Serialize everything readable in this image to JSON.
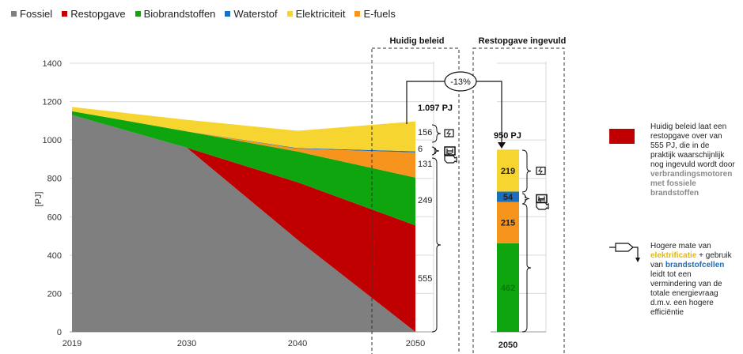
{
  "legend": [
    {
      "name": "Fossiel",
      "color": "#7f7f7f"
    },
    {
      "name": "Restopgave",
      "color": "#c00000"
    },
    {
      "name": "Biobrandstoffen",
      "color": "#0ea50e"
    },
    {
      "name": "Waterstof",
      "color": "#1a6fbf"
    },
    {
      "name": "Elektriciteit",
      "color": "#f7d531"
    },
    {
      "name": "E-fuels",
      "color": "#f7941d"
    }
  ],
  "headers": {
    "left": "Huidig beleid",
    "right": "Restopgave ingevuld"
  },
  "reduction_label": "-13%",
  "totals": {
    "current": "1.097 PJ",
    "target": "950 PJ"
  },
  "chart_data": [
    {
      "type": "area",
      "x": [
        2019,
        2030,
        2040,
        2050
      ],
      "ylabel": "[PJ]",
      "ylim": [
        0,
        1400
      ],
      "yticks": [
        0,
        200,
        400,
        600,
        800,
        1000,
        1200,
        1400
      ],
      "xtick_labels": [
        "2019",
        "2030",
        "2040",
        "2050"
      ],
      "grid": true,
      "series": [
        {
          "name": "Fossiel",
          "color": "#7f7f7f",
          "values": [
            1130,
            960,
            480,
            0
          ]
        },
        {
          "name": "Restopgave",
          "color": "#c00000",
          "values": [
            0,
            0,
            300,
            555
          ]
        },
        {
          "name": "Biobrandstoffen",
          "color": "#0ea50e",
          "values": [
            20,
            85,
            160,
            249
          ]
        },
        {
          "name": "E-fuels",
          "color": "#f7941d",
          "values": [
            0,
            0,
            15,
            131
          ]
        },
        {
          "name": "Waterstof",
          "color": "#1a6fbf",
          "values": [
            0,
            0,
            3,
            6
          ]
        },
        {
          "name": "Elektriciteit",
          "color": "#f7d531",
          "values": [
            22,
            60,
            90,
            156
          ]
        }
      ],
      "data_labels": [
        "156",
        "6",
        "131",
        "249",
        "555"
      ]
    },
    {
      "type": "bar",
      "categories": [
        "2050"
      ],
      "series": [
        {
          "name": "Biobrandstoffen",
          "color": "#0ea50e",
          "values": [
            462
          ]
        },
        {
          "name": "E-fuels",
          "color": "#f7941d",
          "values": [
            215
          ]
        },
        {
          "name": "Waterstof",
          "color": "#1a6fbf",
          "values": [
            54
          ]
        },
        {
          "name": "Elektriciteit",
          "color": "#f7d531",
          "values": [
            219
          ]
        }
      ],
      "data_labels": [
        "462",
        "215",
        "54",
        "219"
      ]
    }
  ],
  "notes": {
    "restopgave_lines": [
      "Huidig beleid laat een",
      "restopgave over van",
      "555 PJ, die in de",
      "praktijk waarschijnlijk",
      "nog ingevuld wordt door",
      "verbrandingsmotoren",
      "met fossiele",
      "brandstoffen"
    ],
    "efficiency_lines": [
      "Hogere mate van",
      "elektrificatie + gebruik",
      "van brandstofcellen",
      "leidt tot een",
      "vermindering van de",
      "totale energievraag",
      "d.m.v. een hogere",
      "efficiëntie"
    ]
  }
}
